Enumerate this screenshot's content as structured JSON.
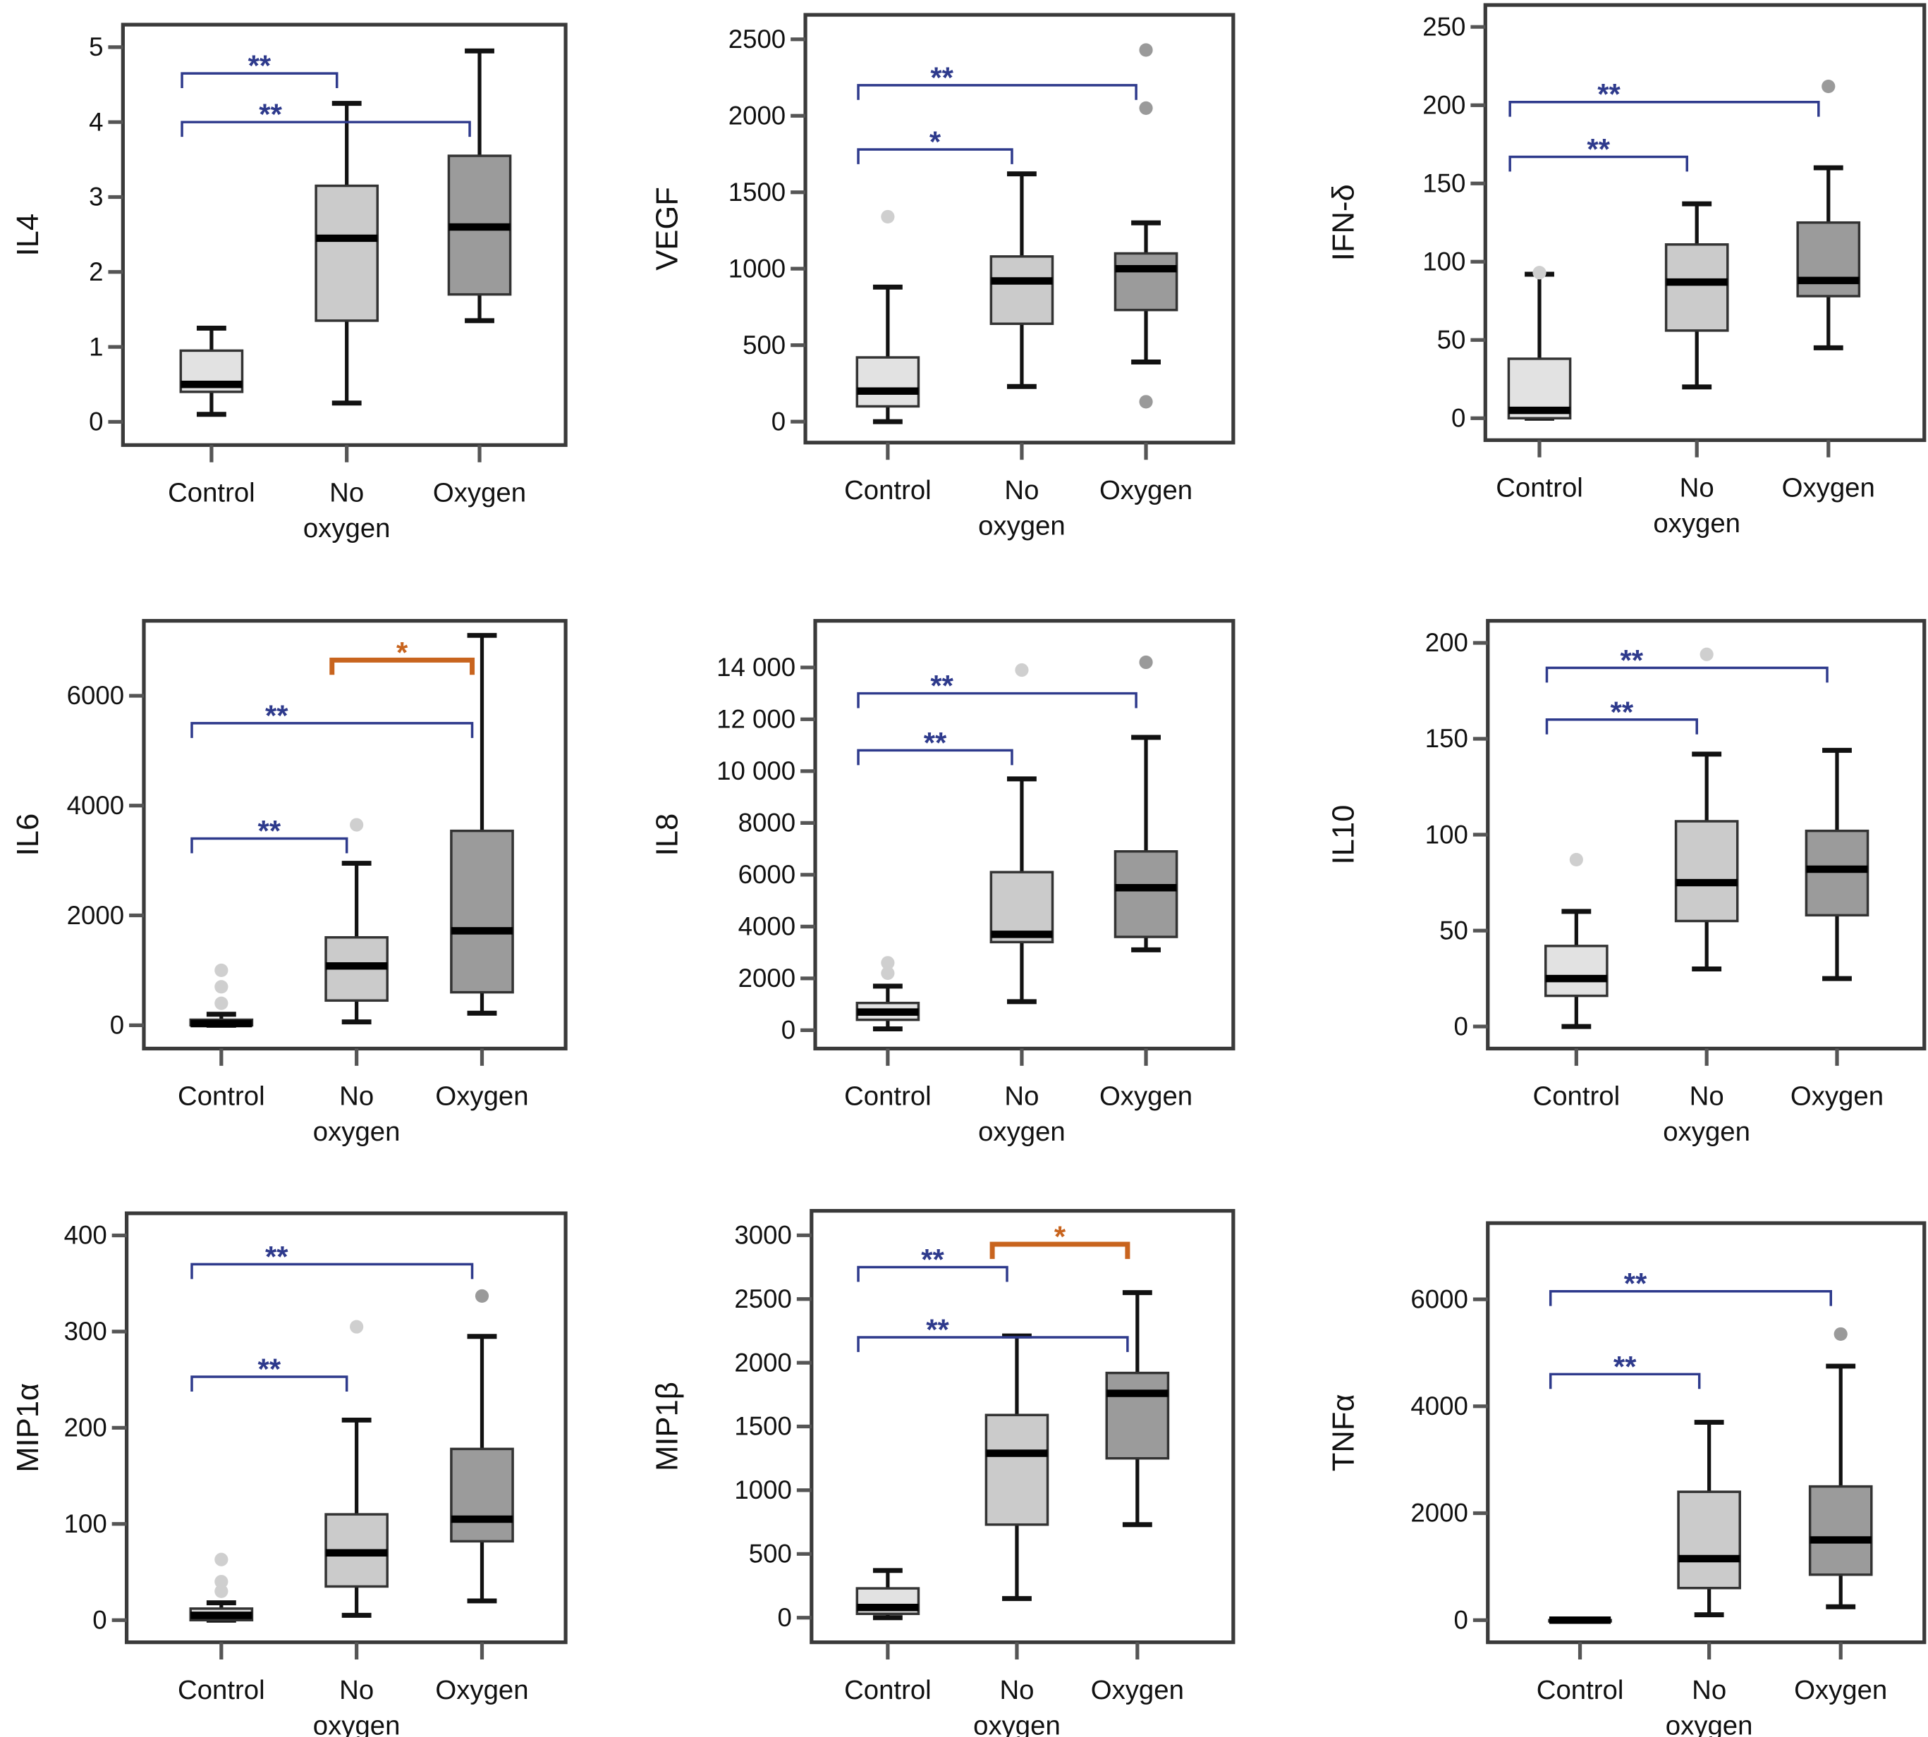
{
  "colors": {
    "control": "#e2e2e2",
    "no_oxygen": "#cbcbcb",
    "oxygen": "#9b9b9b",
    "sig_blue": "#2e3a8c",
    "sig_orange": "#c8641e",
    "outlier_light": "#cfcfcf",
    "outlier_dark": "#9a9a9a"
  },
  "chart_data": [
    {
      "type": "box",
      "ylabel": "IL4",
      "categories": [
        "Control",
        "No oxygen",
        "Oxygen"
      ],
      "ylim": [
        -0.31,
        5.3
      ],
      "yticks": [
        "0",
        "1",
        "2",
        "3",
        "4",
        "5"
      ],
      "ytick_values": [
        0,
        1,
        2,
        3,
        4,
        5
      ],
      "boxes": [
        {
          "min": 0.1,
          "q1": 0.4,
          "median": 0.5,
          "q3": 0.95,
          "max": 1.25,
          "outliers": []
        },
        {
          "min": 0.25,
          "q1": 1.35,
          "median": 2.45,
          "q3": 3.15,
          "max": 4.25,
          "outliers": []
        },
        {
          "min": 1.35,
          "q1": 1.7,
          "median": 2.6,
          "q3": 3.55,
          "max": 4.95,
          "outliers": []
        }
      ],
      "brackets": [
        {
          "from": 0,
          "to": 1,
          "y": 4.65,
          "label": "**",
          "color": "blue"
        },
        {
          "from": 0,
          "to": 2,
          "y": 4.0,
          "label": "**",
          "color": "blue"
        }
      ]
    },
    {
      "type": "box",
      "ylabel": "VEGF",
      "categories": [
        "Control",
        "No oxygen",
        "Oxygen"
      ],
      "ylim": [
        -137,
        2660
      ],
      "yticks": [
        "0",
        "500",
        "1000",
        "1500",
        "2000",
        "2500"
      ],
      "ytick_values": [
        0,
        500,
        1000,
        1500,
        2000,
        2500
      ],
      "boxes": [
        {
          "min": 0,
          "q1": 100,
          "median": 200,
          "q3": 420,
          "max": 880,
          "outliers": [
            1340
          ]
        },
        {
          "min": 230,
          "q1": 640,
          "median": 920,
          "q3": 1080,
          "max": 1620,
          "outliers": []
        },
        {
          "min": 390,
          "q1": 730,
          "median": 1000,
          "q3": 1100,
          "max": 1300,
          "outliers": [
            130,
            2050,
            2430
          ]
        }
      ],
      "brackets": [
        {
          "from": 0,
          "to": 1,
          "y": 1780,
          "label": "*",
          "color": "blue"
        },
        {
          "from": 0,
          "to": 2,
          "y": 2200,
          "label": "**",
          "color": "blue"
        }
      ]
    },
    {
      "type": "box",
      "ylabel": "IFN-δ",
      "categories": [
        "Control",
        "No oxygen",
        "Oxygen"
      ],
      "ylim": [
        -14,
        264
      ],
      "yticks": [
        "0",
        "50",
        "100",
        "150",
        "200",
        "250"
      ],
      "ytick_values": [
        0,
        50,
        100,
        150,
        200,
        250
      ],
      "boxes": [
        {
          "min": 0,
          "q1": 0,
          "median": 5,
          "q3": 38,
          "max": 92,
          "outliers": [
            93
          ]
        },
        {
          "min": 20,
          "q1": 56,
          "median": 87,
          "q3": 111,
          "max": 137,
          "outliers": []
        },
        {
          "min": 45,
          "q1": 78,
          "median": 88,
          "q3": 125,
          "max": 160,
          "outliers": [
            212
          ]
        }
      ],
      "brackets": [
        {
          "from": 0,
          "to": 1,
          "y": 167,
          "label": "**",
          "color": "blue"
        },
        {
          "from": 0,
          "to": 2,
          "y": 202,
          "label": "**",
          "color": "blue"
        }
      ]
    },
    {
      "type": "box",
      "ylabel": "IL6",
      "categories": [
        "Control",
        "No oxygen",
        "Oxygen"
      ],
      "ylim": [
        -425,
        7365
      ],
      "yticks": [
        "0",
        "2000",
        "4000",
        "6000"
      ],
      "ytick_values": [
        0,
        2000,
        4000,
        6000
      ],
      "boxes": [
        {
          "min": 0,
          "q1": 0,
          "median": 30,
          "q3": 100,
          "max": 200,
          "outliers": [
            400,
            700,
            1000
          ]
        },
        {
          "min": 60,
          "q1": 450,
          "median": 1080,
          "q3": 1600,
          "max": 2950,
          "outliers": [
            3650
          ]
        },
        {
          "min": 220,
          "q1": 600,
          "median": 1720,
          "q3": 3540,
          "max": 7100,
          "outliers": []
        }
      ],
      "brackets": [
        {
          "from": 0,
          "to": 1,
          "y": 3400,
          "label": "**",
          "color": "blue"
        },
        {
          "from": 0,
          "to": 2,
          "y": 5500,
          "label": "**",
          "color": "blue"
        },
        {
          "from": 1,
          "to": 2,
          "y": 6650,
          "label": "*",
          "color": "orange"
        }
      ]
    },
    {
      "type": "box",
      "ylabel": "IL8",
      "categories": [
        "Control",
        "No oxygen",
        "Oxygen"
      ],
      "ylim": [
        -710,
        15800
      ],
      "yticks": [
        "0",
        "2000",
        "4000",
        "6000",
        "8000",
        "10 000",
        "12 000",
        "14 000"
      ],
      "ytick_values": [
        0,
        2000,
        4000,
        6000,
        8000,
        10000,
        12000,
        14000
      ],
      "boxes": [
        {
          "min": 50,
          "q1": 400,
          "median": 700,
          "q3": 1050,
          "max": 1700,
          "outliers": [
            2200,
            2600
          ]
        },
        {
          "min": 1100,
          "q1": 3400,
          "median": 3700,
          "q3": 6100,
          "max": 9700,
          "outliers": [
            13900
          ]
        },
        {
          "min": 3100,
          "q1": 3600,
          "median": 5500,
          "q3": 6900,
          "max": 11300,
          "outliers": [
            14200
          ]
        }
      ],
      "brackets": [
        {
          "from": 0,
          "to": 1,
          "y": 10800,
          "label": "**",
          "color": "blue"
        },
        {
          "from": 0,
          "to": 2,
          "y": 13000,
          "label": "**",
          "color": "blue"
        }
      ]
    },
    {
      "type": "box",
      "ylabel": "IL10",
      "categories": [
        "Control",
        "No oxygen",
        "Oxygen"
      ],
      "ylim": [
        -11.5,
        211.5
      ],
      "yticks": [
        "0",
        "50",
        "100",
        "150",
        "200"
      ],
      "ytick_values": [
        0,
        50,
        100,
        150,
        200
      ],
      "boxes": [
        {
          "min": 0,
          "q1": 16,
          "median": 25,
          "q3": 42,
          "max": 60,
          "outliers": [
            87
          ]
        },
        {
          "min": 30,
          "q1": 55,
          "median": 75,
          "q3": 107,
          "max": 142,
          "outliers": [
            194
          ]
        },
        {
          "min": 25,
          "q1": 58,
          "median": 82,
          "q3": 102,
          "max": 144,
          "outliers": []
        }
      ],
      "brackets": [
        {
          "from": 0,
          "to": 1,
          "y": 160,
          "label": "**",
          "color": "blue"
        },
        {
          "from": 0,
          "to": 2,
          "y": 187,
          "label": "**",
          "color": "blue"
        }
      ]
    },
    {
      "type": "box",
      "ylabel": "MIP1α",
      "categories": [
        "Control",
        "No oxygen",
        "Oxygen"
      ],
      "ylim": [
        -23,
        423
      ],
      "yticks": [
        "0",
        "100",
        "200",
        "300",
        "400"
      ],
      "ytick_values": [
        0,
        100,
        200,
        300,
        400
      ],
      "boxes": [
        {
          "min": 0,
          "q1": 0,
          "median": 5,
          "q3": 12,
          "max": 18,
          "outliers": [
            30,
            40,
            63
          ]
        },
        {
          "min": 5,
          "q1": 35,
          "median": 70,
          "q3": 110,
          "max": 208,
          "outliers": [
            305
          ]
        },
        {
          "min": 20,
          "q1": 82,
          "median": 105,
          "q3": 178,
          "max": 295,
          "outliers": [
            337
          ]
        }
      ],
      "brackets": [
        {
          "from": 0,
          "to": 1,
          "y": 253,
          "label": "**",
          "color": "blue"
        },
        {
          "from": 0,
          "to": 2,
          "y": 370,
          "label": "**",
          "color": "blue"
        }
      ]
    },
    {
      "type": "box",
      "ylabel": "MIP1β",
      "categories": [
        "Control",
        "No oxygen",
        "Oxygen"
      ],
      "ylim": [
        -193,
        3192
      ],
      "yticks": [
        "0",
        "500",
        "1000",
        "1500",
        "2000",
        "2500",
        "3000"
      ],
      "ytick_values": [
        0,
        500,
        1000,
        1500,
        2000,
        2500,
        3000
      ],
      "boxes": [
        {
          "min": 0,
          "q1": 30,
          "median": 80,
          "q3": 230,
          "max": 370,
          "outliers": []
        },
        {
          "min": 150,
          "q1": 730,
          "median": 1290,
          "q3": 1590,
          "max": 2210,
          "outliers": []
        },
        {
          "min": 730,
          "q1": 1250,
          "median": 1760,
          "q3": 1920,
          "max": 2550,
          "outliers": []
        }
      ],
      "brackets": [
        {
          "from": 0,
          "to": 1,
          "y": 2750,
          "label": "**",
          "color": "blue"
        },
        {
          "from": 0,
          "to": 2,
          "y": 2200,
          "label": "**",
          "color": "blue"
        },
        {
          "from": 1,
          "to": 2,
          "y": 2930,
          "label": "*",
          "color": "orange"
        }
      ]
    },
    {
      "type": "box",
      "ylabel": "TNFα",
      "categories": [
        "Control",
        "No oxygen",
        "Oxygen"
      ],
      "ylim": [
        -414,
        7425
      ],
      "yticks": [
        "0",
        "2000",
        "4000",
        "6000"
      ],
      "ytick_values": [
        0,
        2000,
        4000,
        6000
      ],
      "boxes": [
        {
          "min": 0,
          "q1": 0,
          "median": 0,
          "q3": 0,
          "max": 0,
          "outliers": []
        },
        {
          "min": 100,
          "q1": 600,
          "median": 1150,
          "q3": 2400,
          "max": 3700,
          "outliers": []
        },
        {
          "min": 250,
          "q1": 850,
          "median": 1500,
          "q3": 2500,
          "max": 4750,
          "outliers": [
            5350
          ]
        }
      ],
      "brackets": [
        {
          "from": 0,
          "to": 1,
          "y": 4600,
          "label": "**",
          "color": "blue"
        },
        {
          "from": 0,
          "to": 2,
          "y": 6150,
          "label": "**",
          "color": "blue"
        }
      ]
    }
  ]
}
